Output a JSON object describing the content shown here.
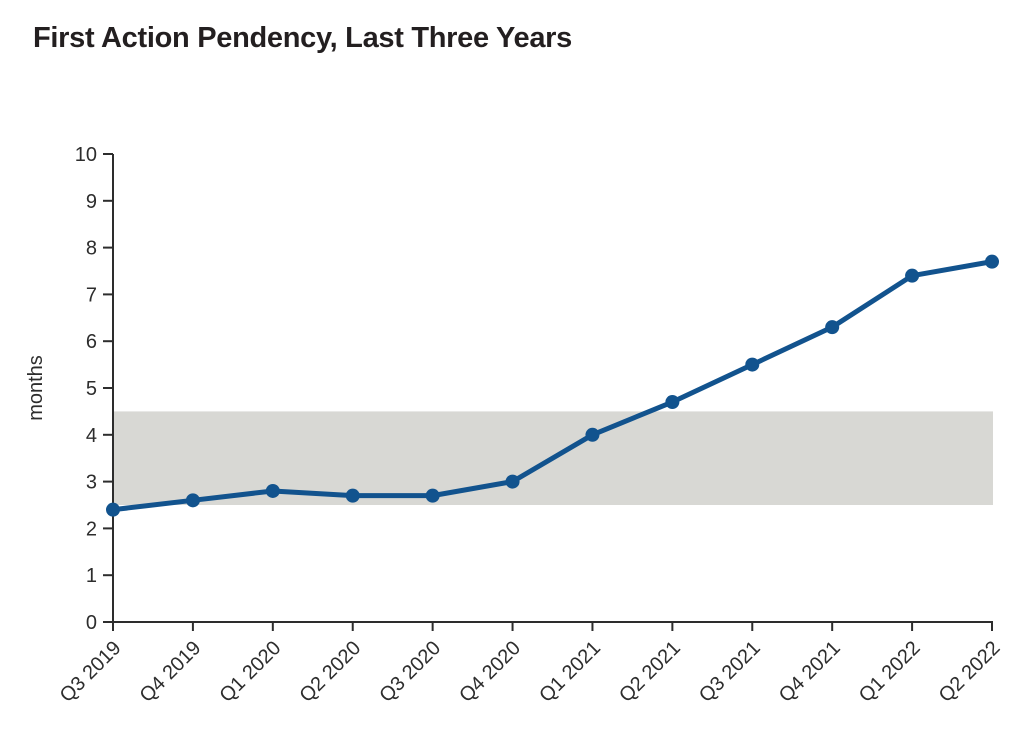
{
  "page": {
    "background": "#ffffff"
  },
  "chart_data": {
    "type": "line",
    "title": "First Action Pendency, Last Three Years",
    "xlabel": "",
    "ylabel": "months",
    "categories": [
      "Q3 2019",
      "Q4 2019",
      "Q1 2020",
      "Q2 2020",
      "Q3 2020",
      "Q4 2020",
      "Q1 2021",
      "Q2 2021",
      "Q3 2021",
      "Q4 2021",
      "Q1 2022",
      "Q2 2022"
    ],
    "series": [
      {
        "name": "First Action Pendency",
        "values": [
          2.4,
          2.6,
          2.8,
          2.7,
          2.7,
          3.0,
          4.0,
          4.7,
          5.5,
          6.3,
          7.4,
          7.7
        ],
        "color": "#12538e"
      }
    ],
    "ylim": [
      0,
      10
    ],
    "ytick_step": 1,
    "yticks": [
      0,
      1,
      2,
      3,
      4,
      5,
      6,
      7,
      8,
      9,
      10
    ],
    "grid": false,
    "legend": "none",
    "x_tick_rotation": -45,
    "band": {
      "from": 2.5,
      "to": 4.5,
      "color": "#d8d8d4"
    },
    "axis_color": "#2d2d2d",
    "text_color": "#2d2d2d",
    "title_color": "#231f20"
  }
}
